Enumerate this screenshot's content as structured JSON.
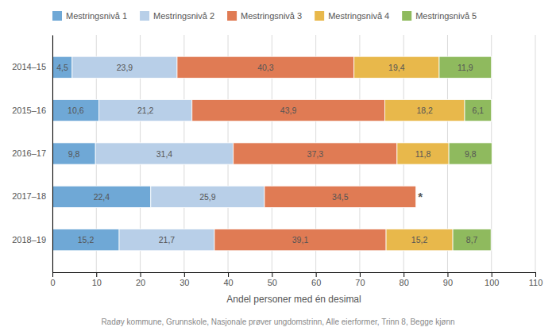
{
  "chart_data": {
    "type": "bar",
    "orientation": "horizontal",
    "stacked": true,
    "data_labels": true,
    "grid": true,
    "legend": "top",
    "xlabel": "Andel personer med én desimal",
    "footnote": "Radøy kommune, Grunnskole, Nasjonale prøver ungdomstrinn, Alle eierformer, Trinn 8, Begge kjønn",
    "categories": [
      "2014–15",
      "2015–16",
      "2016–17",
      "2017–18",
      "2018–19"
    ],
    "series": [
      {
        "name": "Mestringsnivå 1",
        "color": "#6fa8d6",
        "values": [
          4.5,
          10.6,
          9.8,
          22.4,
          15.2
        ],
        "value_labels": [
          "4,5",
          "10,6",
          "9,8",
          "22,4",
          "15,2"
        ]
      },
      {
        "name": "Mestringsnivå 2",
        "color": "#b8cfe8",
        "values": [
          23.9,
          21.2,
          31.4,
          25.9,
          21.7
        ],
        "value_labels": [
          "23,9",
          "21,2",
          "31,4",
          "25,9",
          "21,7"
        ]
      },
      {
        "name": "Mestringsnivå 3",
        "color": "#e07b54",
        "values": [
          40.3,
          43.9,
          37.3,
          34.5,
          39.1
        ],
        "value_labels": [
          "40,3",
          "43,9",
          "37,3",
          "34,5",
          "39,1"
        ]
      },
      {
        "name": "Mestringsnivå 4",
        "color": "#e8b84b",
        "values": [
          19.4,
          18.2,
          11.8,
          null,
          15.2
        ],
        "value_labels": [
          "19,4",
          "18,2",
          "11,8",
          null,
          "15,2"
        ]
      },
      {
        "name": "Mestringsnivå 5",
        "color": "#8fba5e",
        "values": [
          11.9,
          6.1,
          9.8,
          null,
          8.7
        ],
        "value_labels": [
          "11,9",
          "6,1",
          "9,8",
          null,
          "8,7"
        ]
      }
    ],
    "annotations": [
      {
        "text": "*",
        "x": 82.9,
        "y": "2017–18"
      }
    ],
    "xlim": [
      0,
      110
    ],
    "xticks": [
      0,
      10,
      20,
      30,
      40,
      50,
      60,
      70,
      80,
      90,
      100,
      110
    ]
  }
}
